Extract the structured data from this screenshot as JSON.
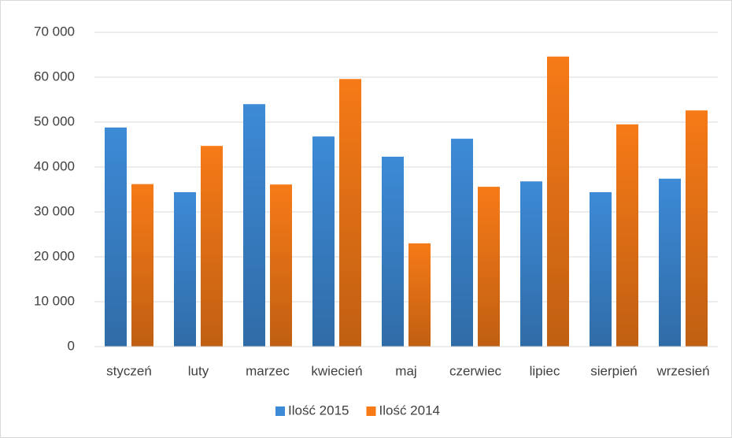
{
  "chart_data": {
    "type": "bar",
    "categories": [
      "styczeń",
      "luty",
      "marzec",
      "kwiecień",
      "maj",
      "czerwiec",
      "lipiec",
      "sierpień",
      "wrzesień"
    ],
    "series": [
      {
        "name": "Ilość 2015",
        "color": "#3d8ad6",
        "values": [
          48800,
          34400,
          54000,
          46800,
          42300,
          46300,
          36800,
          34400,
          37400
        ]
      },
      {
        "name": "Ilość 2014",
        "color": "#f67a17",
        "values": [
          36200,
          44700,
          36100,
          59600,
          23000,
          35600,
          64600,
          49500,
          52600
        ]
      }
    ],
    "ylim": [
      0,
      70000
    ],
    "yticks": [
      0,
      {
        "value": 10000,
        "label": "10 000"
      },
      {
        "value": 20000,
        "label": "20 000"
      },
      {
        "value": 30000,
        "label": "30 000"
      },
      {
        "value": 40000,
        "label": "40 000"
      },
      {
        "value": 50000,
        "label": "50 000"
      },
      {
        "value": 60000,
        "label": "60 000"
      },
      {
        "value": 70000,
        "label": "70 000"
      }
    ],
    "grid": true,
    "legend": "bottom"
  }
}
